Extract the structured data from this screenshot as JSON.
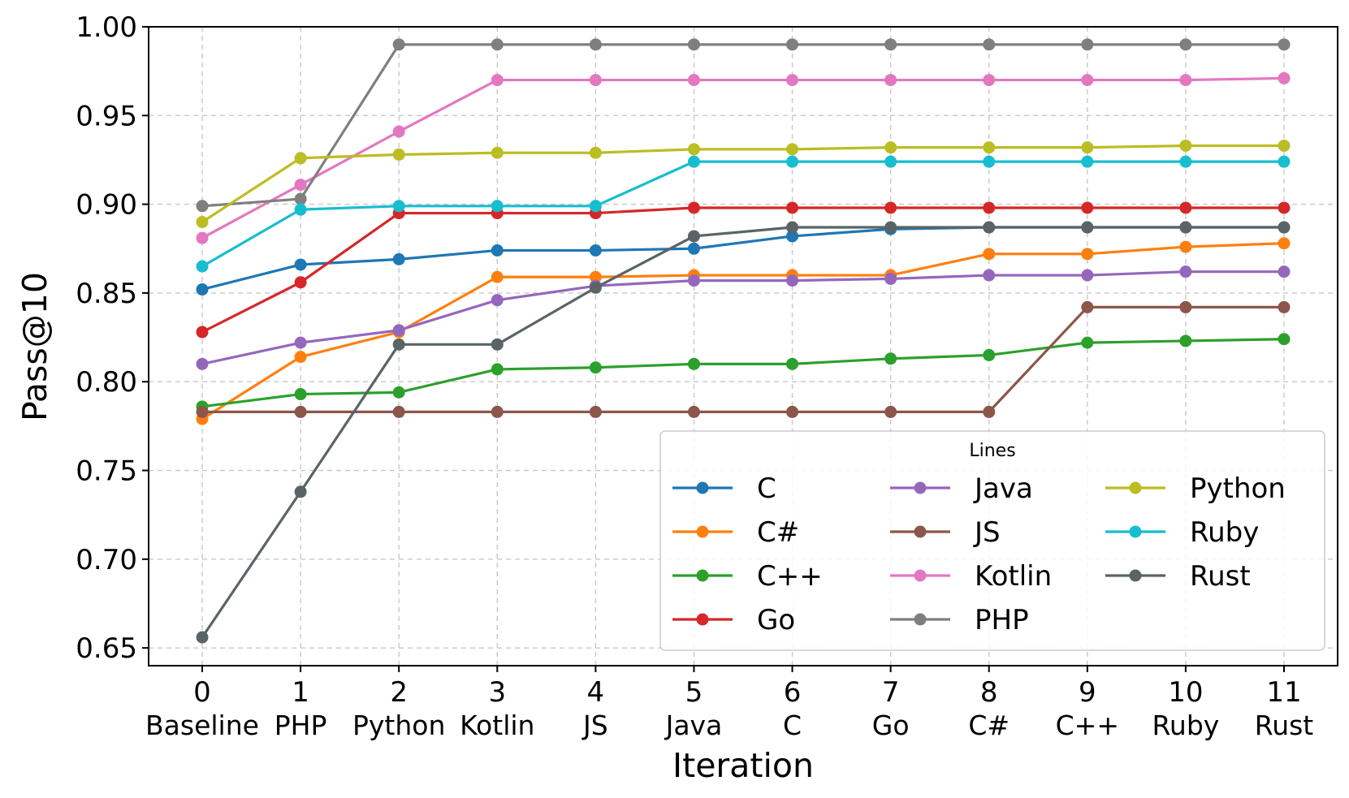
{
  "chart_data": {
    "type": "line",
    "title": "",
    "xlabel": "Iteration",
    "ylabel": "Pass@10",
    "x": [
      0,
      1,
      2,
      3,
      4,
      5,
      6,
      7,
      8,
      9,
      10,
      11
    ],
    "x_tick_labels": [
      "0",
      "1",
      "2",
      "3",
      "4",
      "5",
      "6",
      "7",
      "8",
      "9",
      "10",
      "11"
    ],
    "categories": [
      "Baseline",
      "PHP",
      "Python",
      "Kotlin",
      "JS",
      "Java",
      "C",
      "Go",
      "C#",
      "C++",
      "Ruby",
      "Rust"
    ],
    "ylim": [
      0.64,
      1.0
    ],
    "y_ticks": [
      0.65,
      0.7,
      0.75,
      0.8,
      0.85,
      0.9,
      0.95,
      1.0
    ],
    "y_tick_labels": [
      "0.65",
      "0.70",
      "0.75",
      "0.80",
      "0.85",
      "0.90",
      "0.95",
      "1.00"
    ],
    "grid": true,
    "legend": {
      "title": "Lines",
      "location": "lower-right",
      "columns": 3
    },
    "series": [
      {
        "name": "C",
        "color": "#1f77b4",
        "values": [
          0.852,
          0.866,
          0.869,
          0.874,
          0.874,
          0.875,
          0.882,
          0.886,
          0.887,
          0.887,
          0.887,
          0.887
        ]
      },
      {
        "name": "C#",
        "color": "#ff7f0e",
        "values": [
          0.779,
          0.814,
          0.828,
          0.859,
          0.859,
          0.86,
          0.86,
          0.86,
          0.872,
          0.872,
          0.876,
          0.878
        ]
      },
      {
        "name": "C++",
        "color": "#2ca02c",
        "values": [
          0.786,
          0.793,
          0.794,
          0.807,
          0.808,
          0.81,
          0.81,
          0.813,
          0.815,
          0.822,
          0.823,
          0.824
        ]
      },
      {
        "name": "Go",
        "color": "#d62728",
        "values": [
          0.828,
          0.856,
          0.895,
          0.895,
          0.895,
          0.898,
          0.898,
          0.898,
          0.898,
          0.898,
          0.898,
          0.898
        ]
      },
      {
        "name": "Java",
        "color": "#9467bd",
        "values": [
          0.81,
          0.822,
          0.829,
          0.846,
          0.854,
          0.857,
          0.857,
          0.858,
          0.86,
          0.86,
          0.862,
          0.862
        ]
      },
      {
        "name": "JS",
        "color": "#8c564b",
        "values": [
          0.783,
          0.783,
          0.783,
          0.783,
          0.783,
          0.783,
          0.783,
          0.783,
          0.783,
          0.842,
          0.842,
          0.842
        ]
      },
      {
        "name": "Kotlin",
        "color": "#e377c2",
        "values": [
          0.881,
          0.911,
          0.941,
          0.97,
          0.97,
          0.97,
          0.97,
          0.97,
          0.97,
          0.97,
          0.97,
          0.971
        ]
      },
      {
        "name": "PHP",
        "color": "#7f7f7f",
        "values": [
          0.899,
          0.903,
          0.99,
          0.99,
          0.99,
          0.99,
          0.99,
          0.99,
          0.99,
          0.99,
          0.99,
          0.99
        ]
      },
      {
        "name": "Python",
        "color": "#bcbd22",
        "values": [
          0.89,
          0.926,
          0.928,
          0.929,
          0.929,
          0.931,
          0.931,
          0.932,
          0.932,
          0.932,
          0.933,
          0.933
        ]
      },
      {
        "name": "Ruby",
        "color": "#17becf",
        "values": [
          0.865,
          0.897,
          0.899,
          0.899,
          0.899,
          0.924,
          0.924,
          0.924,
          0.924,
          0.924,
          0.924,
          0.924
        ]
      },
      {
        "name": "Rust",
        "color": "#5a6466",
        "values": [
          0.656,
          0.738,
          0.821,
          0.821,
          0.853,
          0.882,
          0.887,
          0.887,
          0.887,
          0.887,
          0.887,
          0.887
        ]
      }
    ]
  }
}
